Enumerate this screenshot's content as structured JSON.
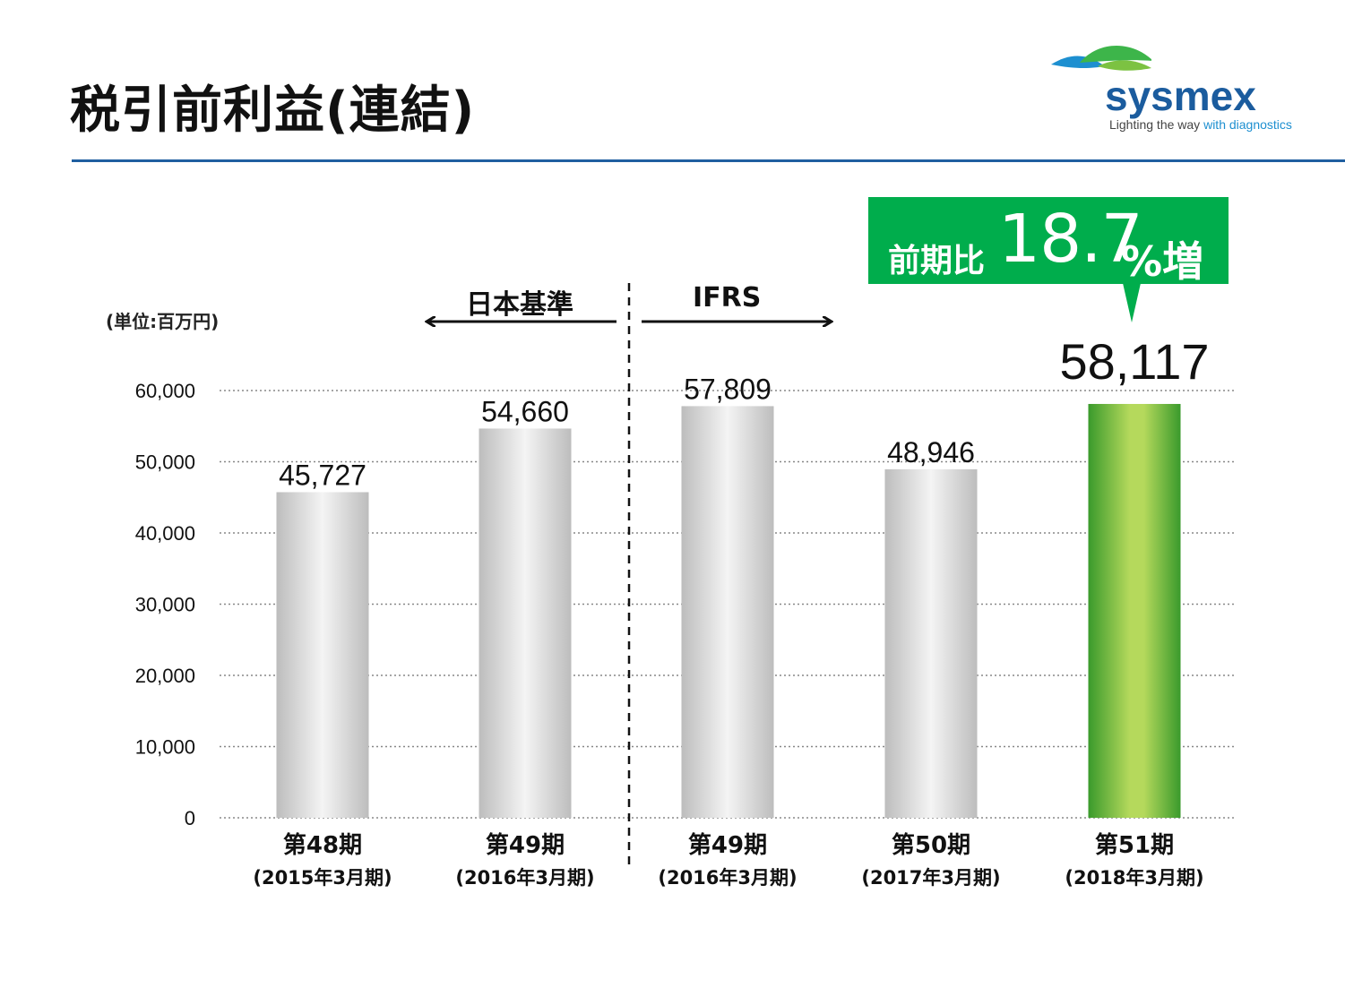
{
  "header": {
    "title": "税引前利益(連結)",
    "logo_word": "sysmex",
    "logo_tagline_main": "Lighting the way",
    "logo_tagline_accent": "with diagnostics"
  },
  "colors": {
    "rule": "#1f5fa0",
    "highlight_green": "#00ad4c",
    "bar_gray": "#c8c8c8",
    "bar_green_light": "#b5d95c",
    "bar_green_dark": "#3a9a2c"
  },
  "annotation": {
    "unit": "(単位:百万円)",
    "standard_left": "日本基準",
    "standard_right": "IFRS",
    "callout_prefix": "前期比",
    "callout_value": "18.7",
    "callout_suffix": "%増"
  },
  "chart_data": {
    "type": "bar",
    "ylim": [
      0,
      60000
    ],
    "yticks": [
      "0",
      "10,000",
      "20,000",
      "30,000",
      "40,000",
      "50,000",
      "60,000"
    ],
    "grid": true,
    "categories": [
      {
        "line1": "第48期",
        "line2": "(2015年3月期)"
      },
      {
        "line1": "第49期",
        "line2": "(2016年3月期)"
      },
      {
        "line1": "第49期",
        "line2": "(2016年3月期)"
      },
      {
        "line1": "第50期",
        "line2": "(2017年3月期)"
      },
      {
        "line1": "第51期",
        "line2": "(2018年3月期)"
      }
    ],
    "values": [
      45727,
      54660,
      57809,
      48946,
      58117
    ],
    "value_labels": [
      "45,727",
      "54,660",
      "57,809",
      "48,946",
      "58,117"
    ],
    "highlight_index": 4,
    "divider_after_index": 1
  }
}
